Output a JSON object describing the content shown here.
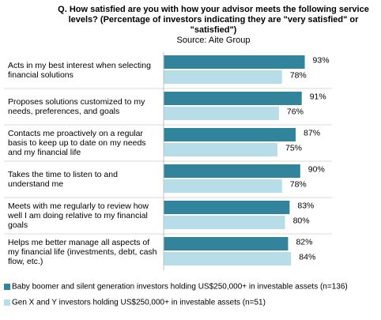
{
  "chart_data": {
    "type": "bar",
    "orientation": "horizontal",
    "title": "Q. How satisfied are you with how your advisor meets the following service levels? (Percentage of investors indicating they are \"very satisfied\" or \"satisfied\")",
    "subtitle": "Source: Aite Group",
    "categories": [
      "Acts in my best interest when selecting financial solutions",
      "Proposes solutions customized to my needs, preferences, and goals",
      "Contacts me proactively on a regular basis to keep up to date on my needs and my financial life",
      "Takes the time to listen to and understand me",
      "Meets with me regularly to review how well I am doing relative to my financial goals",
      "Helps me better manage all aspects of my financial life (investments, debt, cash flow, etc.)"
    ],
    "series": [
      {
        "name": "Baby boomer and silent generation investors holding US$250,000+ in investable assets (n=136)",
        "color": "#31849b",
        "values": [
          93,
          91,
          87,
          90,
          83,
          82
        ],
        "value_labels": [
          "93%",
          "91%",
          "87%",
          "90%",
          "83%",
          "82%"
        ]
      },
      {
        "name": "Gen X and Y investors holding US$250,000+ in investable assets (n=51)",
        "color": "#b7dee8",
        "values": [
          78,
          76,
          75,
          78,
          80,
          84
        ],
        "value_labels": [
          "78%",
          "76%",
          "75%",
          "78%",
          "80%",
          "84%"
        ]
      }
    ],
    "xlim": [
      0,
      100
    ]
  }
}
